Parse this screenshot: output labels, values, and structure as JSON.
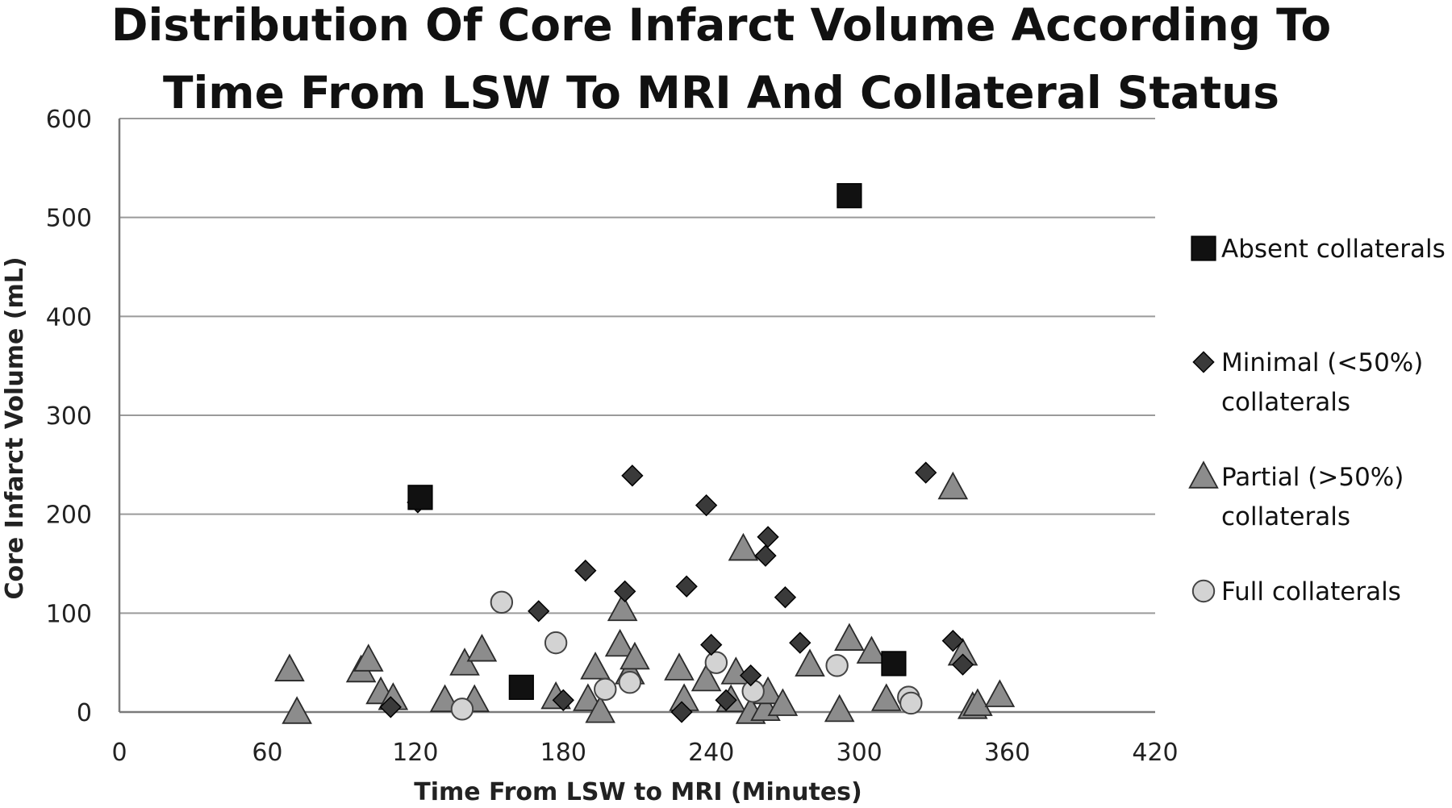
{
  "chart_data": {
    "type": "scatter",
    "title_lines": [
      "Distribution Of Core Infarct Volume According To",
      "Time From LSW To MRI And Collateral Status"
    ],
    "xlabel": "Time From LSW to MRI (Minutes)",
    "ylabel": "Core Infarct Volume (mL)",
    "xlim": [
      0,
      420
    ],
    "ylim": [
      0,
      600
    ],
    "xticks": [
      0,
      60,
      120,
      180,
      240,
      300,
      360,
      420
    ],
    "yticks": [
      0,
      100,
      200,
      300,
      400,
      500,
      600
    ],
    "grid": "horizontal",
    "legend_position": "right",
    "series": [
      {
        "name_lines": [
          "Absent collaterals"
        ],
        "marker": "square",
        "color": "#111111",
        "points": [
          [
            122,
            217
          ],
          [
            163,
            25
          ],
          [
            296,
            522
          ],
          [
            314,
            49
          ]
        ]
      },
      {
        "name_lines": [
          "Minimal (<50%)",
          "collaterals"
        ],
        "marker": "diamond",
        "color": "#3a3a3a",
        "points": [
          [
            121,
            212
          ],
          [
            110,
            5
          ],
          [
            170,
            102
          ],
          [
            180,
            12
          ],
          [
            189,
            143
          ],
          [
            205,
            122
          ],
          [
            208,
            239
          ],
          [
            228,
            0
          ],
          [
            230,
            127
          ],
          [
            238,
            209
          ],
          [
            240,
            68
          ],
          [
            246,
            12
          ],
          [
            256,
            37
          ],
          [
            262,
            158
          ],
          [
            263,
            177
          ],
          [
            270,
            116
          ],
          [
            276,
            70
          ],
          [
            327,
            242
          ],
          [
            338,
            72
          ],
          [
            342,
            48
          ]
        ]
      },
      {
        "name_lines": [
          "Partial (>50%)",
          "collaterals"
        ],
        "marker": "triangle",
        "color": "#8c8c8c",
        "points": [
          [
            69,
            43
          ],
          [
            72,
            0
          ],
          [
            98,
            42
          ],
          [
            101,
            53
          ],
          [
            106,
            20
          ],
          [
            111,
            14
          ],
          [
            132,
            12
          ],
          [
            140,
            49
          ],
          [
            144,
            12
          ],
          [
            147,
            63
          ],
          [
            177,
            15
          ],
          [
            190,
            13
          ],
          [
            193,
            45
          ],
          [
            195,
            1
          ],
          [
            203,
            68
          ],
          [
            204,
            104
          ],
          [
            207,
            40
          ],
          [
            209,
            55
          ],
          [
            227,
            44
          ],
          [
            229,
            13
          ],
          [
            238,
            33
          ],
          [
            248,
            12
          ],
          [
            250,
            40
          ],
          [
            253,
            165
          ],
          [
            256,
            0
          ],
          [
            262,
            3
          ],
          [
            263,
            20
          ],
          [
            269,
            8
          ],
          [
            280,
            48
          ],
          [
            292,
            2
          ],
          [
            296,
            74
          ],
          [
            305,
            61
          ],
          [
            311,
            13
          ],
          [
            338,
            227
          ],
          [
            342,
            59
          ],
          [
            346,
            5
          ],
          [
            348,
            8
          ],
          [
            357,
            17
          ]
        ]
      },
      {
        "name_lines": [
          "Full collaterals"
        ],
        "marker": "circle",
        "color": "#d3d3d3",
        "points": [
          [
            139,
            3
          ],
          [
            155,
            111
          ],
          [
            177,
            70
          ],
          [
            197,
            23
          ],
          [
            207,
            30
          ],
          [
            242,
            50
          ],
          [
            257,
            21
          ],
          [
            291,
            47
          ],
          [
            320,
            15
          ],
          [
            321,
            9
          ]
        ]
      }
    ]
  }
}
